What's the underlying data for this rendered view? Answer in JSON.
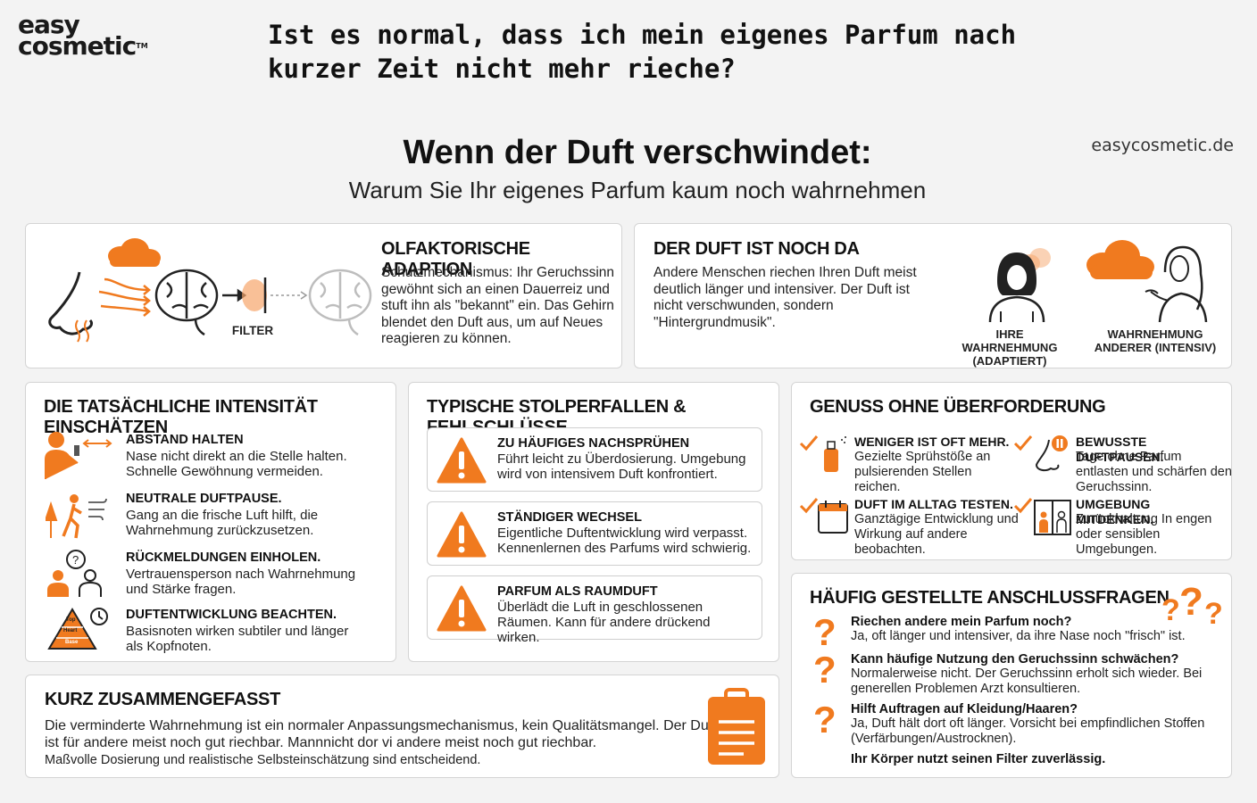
{
  "header": {
    "logo_line1": "easy",
    "logo_line2": "cosmetic",
    "logo_tm": "TM",
    "question": "Ist es normal, dass ich mein eigenes Parfum nach kurzer Zeit nicht mehr rieche?",
    "title": "Wenn der Duft verschwindet:",
    "subtitle": "Warum Sie Ihr eigenes Parfum kaum noch wahrnehmen",
    "domain": "easycosmetic.de"
  },
  "adaption": {
    "title": "OLFAKTORISCHE ADAPTION",
    "text": "Schutzmechanismus: Ihr Geruchssinn gewöhnt sich an einen Dauerreiz und stuft ihn als \"bekannt\" ein. Das Gehirn blendet den Duft aus, um auf Neues reagieren zu können.",
    "filter_label": "FILTER",
    "icons": [
      "nose-icon",
      "cloud-icon",
      "brain-icon",
      "filter-icon",
      "faded-brain-icon"
    ]
  },
  "still_there": {
    "title": "DER DUFT IST NOCH DA",
    "text": "Andere Menschen riechen Ihren Duft meist deutlich länger und intensiver. Der Duft ist nicht verschwunden, sondern \"Hintergrundmusik\".",
    "caption_self": "IHRE WAHRNEHMUNG (ADAPTIERT)",
    "caption_others": "WAHRNEHMUNG ANDERER (INTENSIV)"
  },
  "intensity": {
    "title": "DIE TATSÄCHLICHE INTENSITÄT EINSCHÄTZEN",
    "items": [
      {
        "icon": "spray-distance-icon",
        "title": "ABSTAND HALTEN",
        "text": "Nase nicht direkt an die Stelle halten. Schnelle Gewöhnung vermeiden."
      },
      {
        "icon": "walk-outside-icon",
        "title": "NEUTRALE DUFTPAUSE.",
        "text": "Gang an die frische Luft hilft, die Wahrnehmung zurückzusetzen."
      },
      {
        "icon": "people-feedback-icon",
        "title": "RÜCKMELDUNGEN EINHOLEN.",
        "text": "Vertrauensperson nach Wahrnehmung und Stärke fragen."
      },
      {
        "icon": "fragrance-pyramid-icon",
        "title": "DUFTENTWICKLUNG BEACHTEN.",
        "text": "Basisnoten wirken subtiler und länger als Kopfnoten."
      }
    ],
    "pyramid_labels": [
      "Top",
      "Heart",
      "Base"
    ]
  },
  "pitfalls": {
    "title": "TYPISCHE STOLPERFALLEN & FEHLSCHLÜSSE",
    "items": [
      {
        "title": "ZU HÄUFIGES NACHSPRÜHEN",
        "text": "Führt leicht zu Überdosierung. Umgebung wird von intensivem Duft konfrontiert."
      },
      {
        "title": "STÄNDIGER WECHSEL",
        "text": "Eigentliche Duftentwicklung wird verpasst. Kennenlernen des Parfums wird schwierig."
      },
      {
        "title": "PARFUM ALS RAUMDUFT",
        "text": "Überlädt die Luft in geschlossenen Räumen. Kann für andere drückend wirken."
      }
    ]
  },
  "enjoy": {
    "title": "GENUSS OHNE ÜBERFORDERUNG",
    "items": [
      {
        "icon": "perfume-bottle-icon",
        "title": "WENIGER IST OFT MEHR.",
        "text": "Gezielte Sprühstöße an pulsierenden Stellen reichen."
      },
      {
        "icon": "nose-pause-icon",
        "title": "BEWUSSTE DUFTPAUSEN.",
        "text": "Tage ohne Parfum entlasten und schärfen den Geruchssinn."
      },
      {
        "icon": "calendar-icon",
        "title": "DUFT IM ALLTAG TESTEN.",
        "text": "Ganztägige Entwicklung und Wirkung auf andere beobachten."
      },
      {
        "icon": "elevator-icon",
        "title": "UMGEBUNG MITDENKEN.",
        "text": "Zurückhaltung In engen oder sensiblen Umgebungen."
      }
    ]
  },
  "summary": {
    "title": "KURZ ZUSAMMENGEFASST",
    "line1": "Die verminderte Wahrnehmung ist ein normaler Anpassungsmechanismus, kein Qualitätsmangel. Der Duft",
    "line2": "ist für andere meist noch gut riechbar. Mannnicht dor vi andere meist noch gut riechbar.",
    "line3": "Maßvolle Dosierung und realistische Selbsteinschätzung sind entscheidend."
  },
  "faq": {
    "title": "HÄUFIG GESTELLTE ANSCHLUSSFRAGEN",
    "items": [
      {
        "q": "Riechen andere mein Parfum noch?",
        "a": "Ja, oft länger und intensiver, da ihre Nase noch \"frisch\" ist."
      },
      {
        "q": "Kann häufige Nutzung den Geruchssinn schwächen?",
        "a": "Normalerweise nicht. Der Geruchssinn erholt sich wieder. Bei generellen Problemen Arzt konsultieren."
      },
      {
        "q": "Hilft Auftragen auf Kleidung/Haaren?",
        "a": "Ja, Duft hält dort oft länger. Vorsicht bei empfindlichen Stoffen (Verfärbungen/Austrocknen)."
      }
    ],
    "closing": "Ihr Körper nutzt seinen Filter zuverlässig."
  },
  "colors": {
    "accent": "#f07a1f",
    "dark": "#1f1f1f",
    "border": "#d4d4d4"
  }
}
